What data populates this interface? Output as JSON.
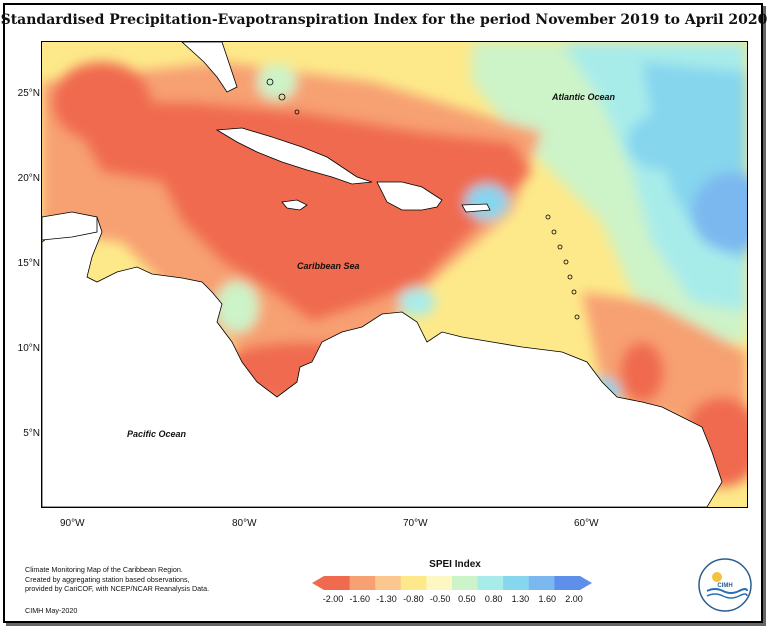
{
  "title": "Standardised Precipitation-Evapotranspiration Index for the period November 2019 to April 2020",
  "lat_labels": [
    "25°N",
    "20°N",
    "15°N",
    "10°N",
    "5°N"
  ],
  "lon_labels": [
    "90°W",
    "80°W",
    "70°W",
    "60°W"
  ],
  "region_labels": {
    "atlantic": "Atlantic Ocean",
    "caribbean": "Caribbean Sea",
    "pacific": "Pacific Ocean"
  },
  "credits": {
    "line1": "Climate Monitoring Map of the Caribbean Region.",
    "line2": "Created by aggregating station based observations,",
    "line3": "provided by CariCOF, with NCEP/NCAR Reanalysis Data.",
    "date": "CIMH May-2020"
  },
  "legend": {
    "title": "SPEI Index",
    "ticks": [
      "-2.00",
      "-1.60",
      "-1.30",
      "-0.80",
      "-0.50",
      "0.50",
      "0.80",
      "1.30",
      "1.60",
      "2.00"
    ],
    "colors": [
      "#f06a4f",
      "#f7a072",
      "#fbc78f",
      "#fde98a",
      "#fdf7c4",
      "#cdf3c8",
      "#a8ecea",
      "#86d6ee",
      "#7bb8f0",
      "#5e8fea"
    ]
  },
  "logo": {
    "text": "CIMH"
  }
}
